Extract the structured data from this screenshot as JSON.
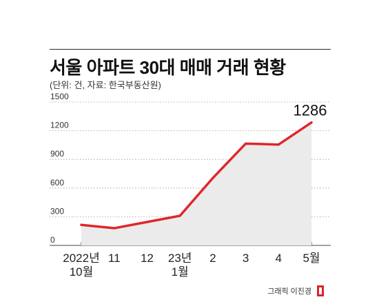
{
  "header": {
    "title": "서울 아파트 30대 매매 거래 현황",
    "subtitle": "(단위: 건, 자료: 한국부동산원)"
  },
  "credit": {
    "text": "그래픽 이진경",
    "logo_icon": "publisher-logo-icon",
    "logo_color": "#d7262b"
  },
  "colors": {
    "line": "#e0262a",
    "area": "#ebebeb",
    "grid": "#9a9a9a"
  },
  "chart_data": {
    "type": "line",
    "title": "서울 아파트 30대 매매 거래 현황",
    "subtitle": "(단위: 건, 자료: 한국부동산원)",
    "xlabel": "",
    "ylabel": "",
    "x_tick_lines": [
      [
        "2022년",
        "10월"
      ],
      [
        "11"
      ],
      [
        "12"
      ],
      [
        "23년",
        "1월"
      ],
      [
        "2"
      ],
      [
        "3"
      ],
      [
        "4"
      ],
      [
        "5월"
      ]
    ],
    "series": [
      {
        "values": [
          215,
          180,
          245,
          310,
          705,
          1065,
          1055,
          1286
        ]
      }
    ],
    "data_labels": [
      {
        "index": 7,
        "text": "1286"
      }
    ],
    "y_ticks": [
      0,
      300,
      600,
      900,
      1200,
      1500
    ],
    "y_tick_labels": [
      "0",
      "300",
      "600",
      "900",
      "1200",
      "1500"
    ],
    "ylim": [
      0,
      1500
    ],
    "grid": "horizontal-dotted",
    "area_fill": true
  }
}
